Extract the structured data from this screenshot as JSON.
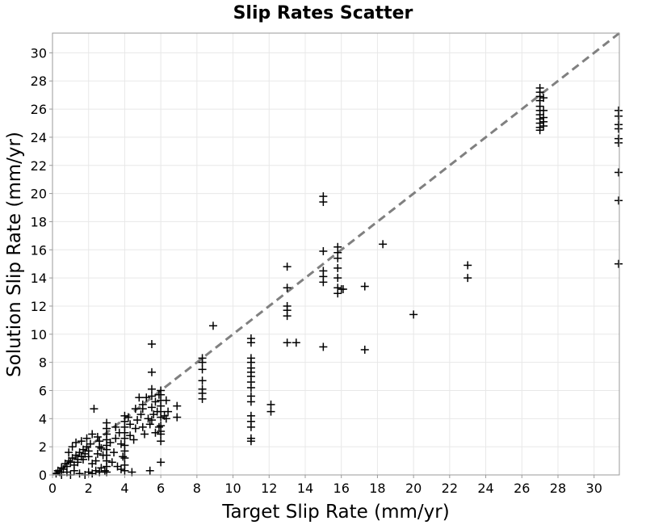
{
  "chart_data": {
    "type": "scatter",
    "title": "Slip Rates Scatter",
    "xlabel": "Target Slip Rate (mm/yr)",
    "ylabel": "Solution Slip Rate (mm/yr)",
    "xlim": [
      0,
      31.4
    ],
    "ylim": [
      0,
      31.4
    ],
    "xticks": [
      "0",
      "2",
      "4",
      "6",
      "8",
      "10",
      "12",
      "14",
      "16",
      "18",
      "20",
      "22",
      "24",
      "26",
      "28",
      "30"
    ],
    "yticks": [
      "0",
      "2",
      "4",
      "6",
      "8",
      "10",
      "12",
      "14",
      "16",
      "18",
      "20",
      "22",
      "24",
      "26",
      "28",
      "30"
    ],
    "grid": true,
    "marker": "plus",
    "marker_color": "#000000",
    "reference_line": {
      "style": "dashed",
      "color": "#808080",
      "from": [
        0,
        0
      ],
      "to": [
        31.4,
        31.4
      ]
    },
    "series": [
      {
        "points": [
          [
            0.2,
            0.1
          ],
          [
            0.3,
            0.3
          ],
          [
            0.4,
            0.2
          ],
          [
            0.5,
            0.5
          ],
          [
            0.6,
            0.4
          ],
          [
            0.7,
            0.8
          ],
          [
            0.8,
            0.6
          ],
          [
            0.9,
            1.0
          ],
          [
            1.0,
            0.9
          ],
          [
            1.1,
            1.2
          ],
          [
            1.2,
            0.7
          ],
          [
            1.3,
            1.4
          ],
          [
            1.4,
            1.1
          ],
          [
            1.5,
            1.6
          ],
          [
            1.6,
            1.3
          ],
          [
            1.7,
            1.8
          ],
          [
            1.8,
            1.5
          ],
          [
            1.9,
            2.0
          ],
          [
            2.0,
            1.7
          ],
          [
            2.1,
            2.2
          ],
          [
            0.5,
            0.0
          ],
          [
            0.8,
            0.2
          ],
          [
            1.0,
            0.0
          ],
          [
            1.2,
            0.3
          ],
          [
            1.5,
            0.1
          ],
          [
            1.8,
            0.0
          ],
          [
            2.0,
            0.2
          ],
          [
            2.2,
            0.1
          ],
          [
            2.4,
            0.3
          ],
          [
            2.6,
            0.2
          ],
          [
            0.9,
            1.6
          ],
          [
            1.1,
            2.0
          ],
          [
            1.3,
            2.3
          ],
          [
            1.6,
            2.4
          ],
          [
            1.9,
            2.6
          ],
          [
            2.2,
            2.9
          ],
          [
            2.3,
            4.7
          ],
          [
            2.5,
            2.7
          ],
          [
            2.6,
            2.4
          ],
          [
            2.7,
            1.9
          ],
          [
            1.4,
            0.9
          ],
          [
            1.7,
            1.1
          ],
          [
            2.0,
            1.3
          ],
          [
            2.2,
            0.8
          ],
          [
            2.4,
            1.0
          ],
          [
            2.5,
            1.5
          ],
          [
            2.6,
            2.0
          ],
          [
            2.7,
            0.5
          ],
          [
            2.8,
            1.4
          ],
          [
            2.9,
            0.3
          ],
          [
            3.0,
            3.7
          ],
          [
            3.0,
            3.3
          ],
          [
            3.0,
            2.9
          ],
          [
            3.0,
            2.5
          ],
          [
            3.0,
            2.1
          ],
          [
            3.0,
            1.8
          ],
          [
            3.0,
            1.4
          ],
          [
            3.0,
            1.0
          ],
          [
            3.0,
            0.6
          ],
          [
            3.0,
            0.2
          ],
          [
            3.2,
            2.3
          ],
          [
            3.4,
            1.6
          ],
          [
            3.5,
            2.6
          ],
          [
            3.6,
            0.6
          ],
          [
            3.8,
            2.2
          ],
          [
            3.9,
            1.3
          ],
          [
            3.5,
            3.4
          ],
          [
            3.7,
            3.0
          ],
          [
            3.3,
            0.9
          ],
          [
            3.8,
            0.4
          ],
          [
            4.0,
            4.2
          ],
          [
            4.0,
            3.8
          ],
          [
            4.0,
            3.4
          ],
          [
            4.0,
            3.0
          ],
          [
            4.0,
            2.6
          ],
          [
            4.0,
            2.1
          ],
          [
            4.0,
            1.7
          ],
          [
            4.0,
            1.2
          ],
          [
            4.0,
            0.7
          ],
          [
            4.0,
            0.3
          ],
          [
            4.2,
            4.1
          ],
          [
            4.3,
            3.6
          ],
          [
            4.3,
            2.8
          ],
          [
            4.4,
            0.2
          ],
          [
            4.5,
            2.5
          ],
          [
            4.6,
            4.7
          ],
          [
            4.7,
            3.9
          ],
          [
            4.8,
            5.5
          ],
          [
            4.9,
            4.3
          ],
          [
            4.6,
            3.3
          ],
          [
            5.0,
            5.0
          ],
          [
            5.0,
            4.7
          ],
          [
            5.0,
            3.4
          ],
          [
            5.1,
            2.9
          ],
          [
            5.2,
            5.5
          ],
          [
            5.3,
            4.0
          ],
          [
            5.4,
            3.6
          ],
          [
            5.4,
            0.3
          ],
          [
            5.5,
            9.3
          ],
          [
            5.5,
            7.3
          ],
          [
            5.5,
            6.1
          ],
          [
            5.5,
            5.6
          ],
          [
            5.5,
            4.8
          ],
          [
            5.5,
            3.9
          ],
          [
            5.6,
            4.3
          ],
          [
            5.7,
            5.2
          ],
          [
            5.8,
            4.5
          ],
          [
            5.9,
            5.7
          ],
          [
            5.7,
            3.0
          ],
          [
            5.9,
            3.4
          ],
          [
            6.0,
            6.0
          ],
          [
            6.0,
            5.7
          ],
          [
            6.0,
            5.3
          ],
          [
            6.0,
            4.9
          ],
          [
            6.0,
            4.5
          ],
          [
            6.0,
            4.1
          ],
          [
            6.0,
            3.5
          ],
          [
            6.0,
            3.1
          ],
          [
            6.0,
            2.9
          ],
          [
            6.0,
            2.4
          ],
          [
            6.0,
            0.9
          ],
          [
            6.2,
            4.2
          ],
          [
            6.3,
            4.0
          ],
          [
            6.3,
            5.3
          ],
          [
            6.4,
            4.5
          ],
          [
            6.9,
            4.9
          ],
          [
            6.9,
            4.1
          ],
          [
            8.3,
            8.3
          ],
          [
            8.3,
            8.0
          ],
          [
            8.3,
            7.5
          ],
          [
            8.3,
            6.7
          ],
          [
            8.3,
            6.1
          ],
          [
            8.3,
            5.8
          ],
          [
            8.3,
            5.4
          ],
          [
            8.9,
            10.6
          ],
          [
            11.0,
            9.7
          ],
          [
            11.0,
            9.4
          ],
          [
            11.0,
            8.3
          ],
          [
            11.0,
            8.0
          ],
          [
            11.0,
            7.6
          ],
          [
            11.0,
            7.3
          ],
          [
            11.0,
            7.0
          ],
          [
            11.0,
            6.6
          ],
          [
            11.0,
            6.2
          ],
          [
            11.0,
            5.6
          ],
          [
            11.0,
            5.2
          ],
          [
            11.0,
            4.2
          ],
          [
            11.0,
            3.8
          ],
          [
            11.0,
            3.4
          ],
          [
            11.0,
            2.6
          ],
          [
            11.0,
            2.4
          ],
          [
            12.1,
            5.0
          ],
          [
            12.1,
            4.5
          ],
          [
            13.0,
            14.8
          ],
          [
            13.0,
            13.3
          ],
          [
            13.0,
            12.0
          ],
          [
            13.0,
            11.7
          ],
          [
            13.0,
            11.3
          ],
          [
            13.0,
            9.4
          ],
          [
            13.5,
            9.4
          ],
          [
            15.0,
            19.8
          ],
          [
            15.0,
            19.4
          ],
          [
            15.0,
            15.9
          ],
          [
            15.0,
            14.5
          ],
          [
            15.0,
            14.1
          ],
          [
            15.0,
            13.7
          ],
          [
            15.0,
            9.1
          ],
          [
            15.8,
            16.2
          ],
          [
            15.8,
            15.8
          ],
          [
            15.8,
            15.4
          ],
          [
            15.8,
            14.7
          ],
          [
            15.8,
            14.0
          ],
          [
            15.8,
            13.3
          ],
          [
            15.8,
            12.9
          ],
          [
            16.0,
            13.2
          ],
          [
            16.1,
            13.2
          ],
          [
            17.3,
            13.4
          ],
          [
            17.3,
            8.9
          ],
          [
            18.3,
            16.4
          ],
          [
            20.0,
            11.4
          ],
          [
            23.0,
            14.9
          ],
          [
            23.0,
            14.0
          ],
          [
            27.0,
            27.5
          ],
          [
            27.0,
            27.2
          ],
          [
            27.0,
            26.9
          ],
          [
            27.0,
            26.6
          ],
          [
            27.0,
            26.2
          ],
          [
            27.0,
            25.9
          ],
          [
            27.0,
            25.6
          ],
          [
            27.0,
            25.3
          ],
          [
            27.0,
            25.0
          ],
          [
            27.0,
            24.7
          ],
          [
            27.0,
            24.5
          ],
          [
            27.2,
            26.8
          ],
          [
            27.2,
            25.9
          ],
          [
            27.2,
            25.4
          ],
          [
            27.2,
            25.1
          ],
          [
            27.2,
            24.8
          ],
          [
            31.4,
            25.9
          ],
          [
            31.4,
            25.5
          ],
          [
            31.4,
            24.9
          ],
          [
            31.4,
            24.6
          ],
          [
            31.4,
            23.9
          ],
          [
            31.4,
            23.6
          ],
          [
            31.4,
            21.5
          ],
          [
            31.4,
            19.5
          ],
          [
            31.4,
            15.0
          ]
        ]
      }
    ]
  }
}
